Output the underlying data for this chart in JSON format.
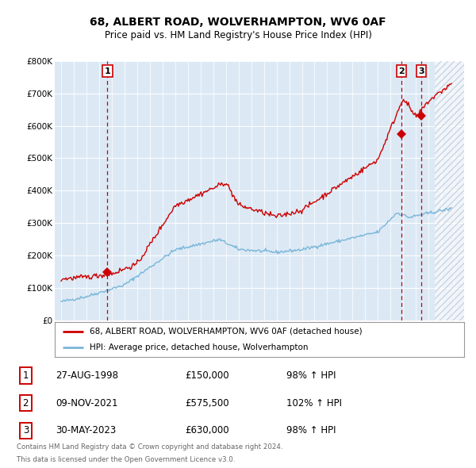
{
  "title": "68, ALBERT ROAD, WOLVERHAMPTON, WV6 0AF",
  "subtitle": "Price paid vs. HM Land Registry's House Price Index (HPI)",
  "title_fontsize": 10,
  "subtitle_fontsize": 8.5,
  "background_color": "#dce9f5",
  "plot_bg_color": "#dce9f5",
  "hpi_color": "#7ab6d9",
  "price_color": "#cc0000",
  "sale_marker_color": "#cc0000",
  "dashed_line_color": "#cc0000",
  "ylim": [
    0,
    800000
  ],
  "ytick_labels": [
    "£0",
    "£100K",
    "£200K",
    "£300K",
    "£400K",
    "£500K",
    "£600K",
    "£700K",
    "£800K"
  ],
  "ytick_values": [
    0,
    100000,
    200000,
    300000,
    400000,
    500000,
    600000,
    700000,
    800000
  ],
  "sales": [
    {
      "label": "1",
      "date": 1998.65,
      "price": 150000,
      "year_label": "27-AUG-1998",
      "price_label": "£150,000",
      "hpi_pct": "98%",
      "direction": "↑"
    },
    {
      "label": "2",
      "date": 2021.85,
      "price": 575500,
      "year_label": "09-NOV-2021",
      "price_label": "£575,500",
      "hpi_pct": "102%",
      "direction": "↑"
    },
    {
      "label": "3",
      "date": 2023.41,
      "price": 630000,
      "year_label": "30-MAY-2023",
      "price_label": "£630,000",
      "hpi_pct": "98%",
      "direction": "↑"
    }
  ],
  "legend_entry1": "68, ALBERT ROAD, WOLVERHAMPTON, WV6 0AF (detached house)",
  "legend_entry2": "HPI: Average price, detached house, Wolverhampton",
  "footer1": "Contains HM Land Registry data © Crown copyright and database right 2024.",
  "footer2": "This data is licensed under the Open Government Licence v3.0.",
  "hatched_region_start": 2024.5,
  "hatched_region_end": 2026.8,
  "xlim_start": 1994.5,
  "xlim_end": 2026.8
}
